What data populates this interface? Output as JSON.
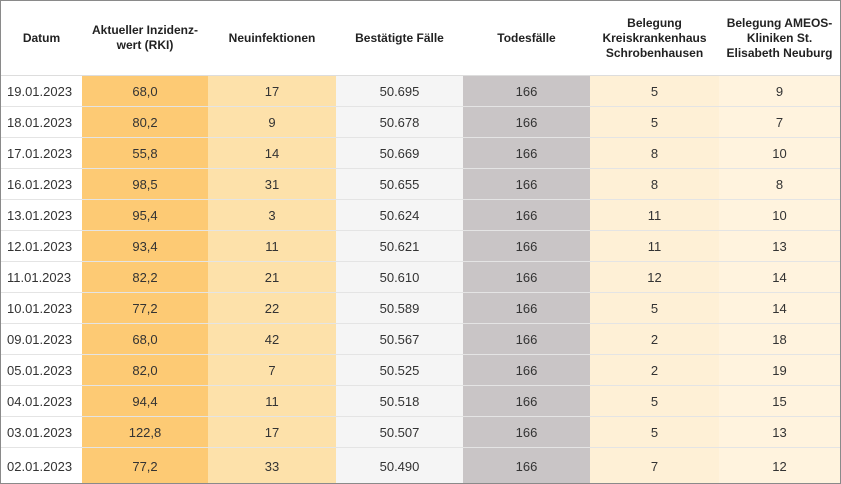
{
  "table": {
    "headers": [
      "Datum",
      "Aktueller Inzidenz-wert (RKI)",
      "Neuinfektionen",
      "Bestätigte Fälle",
      "Todesfälle",
      "Belegung Kreiskrankenhaus Schrobenhausen",
      "Belegung AMEOS-Kliniken St. Elisabeth Neuburg"
    ],
    "rows": [
      [
        "19.01.2023",
        "68,0",
        "17",
        "50.695",
        "166",
        "5",
        "9"
      ],
      [
        "18.01.2023",
        "80,2",
        "9",
        "50.678",
        "166",
        "5",
        "7"
      ],
      [
        "17.01.2023",
        "55,8",
        "14",
        "50.669",
        "166",
        "8",
        "10"
      ],
      [
        "16.01.2023",
        "98,5",
        "31",
        "50.655",
        "166",
        "8",
        "8"
      ],
      [
        "13.01.2023",
        "95,4",
        "3",
        "50.624",
        "166",
        "11",
        "10"
      ],
      [
        "12.01.2023",
        "93,4",
        "11",
        "50.621",
        "166",
        "11",
        "13"
      ],
      [
        "11.01.2023",
        "82,2",
        "21",
        "50.610",
        "166",
        "12",
        "14"
      ],
      [
        "10.01.2023",
        "77,2",
        "22",
        "50.589",
        "166",
        "5",
        "14"
      ],
      [
        "09.01.2023",
        "68,0",
        "42",
        "50.567",
        "166",
        "2",
        "18"
      ],
      [
        "05.01.2023",
        "82,0",
        "7",
        "50.525",
        "166",
        "2",
        "19"
      ],
      [
        "04.01.2023",
        "94,4",
        "11",
        "50.518",
        "166",
        "5",
        "15"
      ],
      [
        "03.01.2023",
        "122,8",
        "17",
        "50.507",
        "166",
        "5",
        "13"
      ],
      [
        "02.01.2023",
        "77,2",
        "33",
        "50.490",
        "166",
        "7",
        "12"
      ]
    ]
  }
}
